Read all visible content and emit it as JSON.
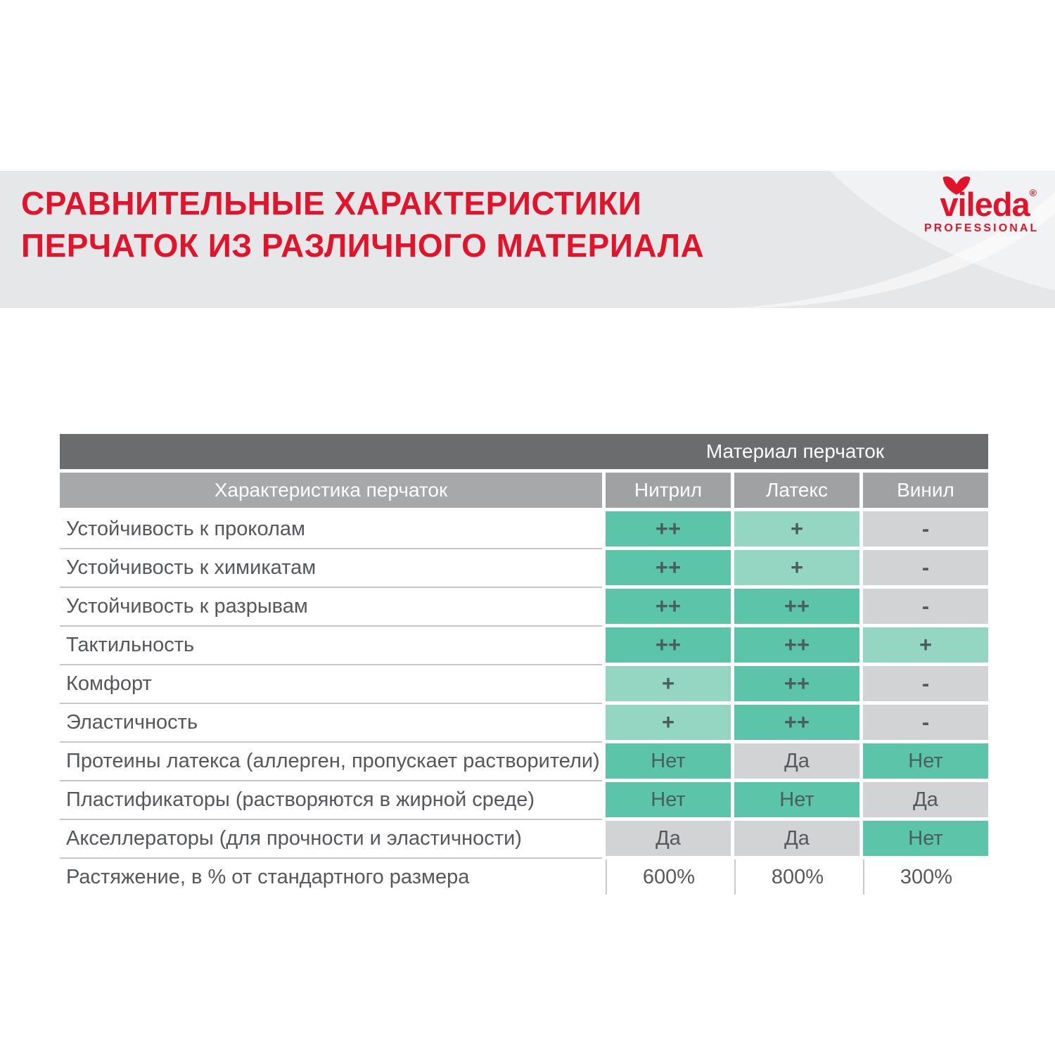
{
  "banner": {
    "title_line1": "СРАВНИТЕЛЬНЫЕ ХАРАКТЕРИСТИКИ",
    "title_line2": "ПЕРЧАТОК ИЗ РАЗЛИЧНОГО МАТЕРИАЛА",
    "title_color": "#e2142b",
    "background": "#e6e7e9"
  },
  "logo": {
    "brand": "vileda",
    "registered": "®",
    "subbrand": "PROFESSIONAL",
    "color": "#e2142b",
    "icon": "vileda-bird-icon"
  },
  "table": {
    "group_header": "Материал перчаток",
    "col_header_label": "Характеристика перчаток",
    "columns": [
      "Нитрил",
      "Латекс",
      "Винил"
    ],
    "colors": {
      "header_dark": "#6a6c6e",
      "header_gray": "#a6a8aa",
      "cell_strong_green": "#5cc4a8",
      "cell_light_green": "#95d6c3",
      "cell_gray": "#d2d3d5"
    },
    "rows": [
      {
        "label": "Устойчивость к проколам",
        "values": [
          {
            "text": "++",
            "style": "strong"
          },
          {
            "text": "+",
            "style": "light"
          },
          {
            "text": "-",
            "style": "gray"
          }
        ]
      },
      {
        "label": "Устойчивость к химикатам",
        "values": [
          {
            "text": "++",
            "style": "strong"
          },
          {
            "text": "+",
            "style": "light"
          },
          {
            "text": "-",
            "style": "gray"
          }
        ]
      },
      {
        "label": "Устойчивость к разрывам",
        "values": [
          {
            "text": "++",
            "style": "strong"
          },
          {
            "text": "++",
            "style": "strong"
          },
          {
            "text": "-",
            "style": "gray"
          }
        ]
      },
      {
        "label": "Тактильность",
        "values": [
          {
            "text": "++",
            "style": "strong"
          },
          {
            "text": "++",
            "style": "strong"
          },
          {
            "text": "+",
            "style": "light"
          }
        ]
      },
      {
        "label": "Комфорт",
        "values": [
          {
            "text": "+",
            "style": "light"
          },
          {
            "text": "++",
            "style": "strong"
          },
          {
            "text": "-",
            "style": "gray"
          }
        ]
      },
      {
        "label": "Эластичность",
        "values": [
          {
            "text": "+",
            "style": "light"
          },
          {
            "text": "++",
            "style": "strong"
          },
          {
            "text": "-",
            "style": "gray"
          }
        ]
      },
      {
        "label": "Протеины латекса (аллерген, пропускает растворители)",
        "values": [
          {
            "text": "Нет",
            "style": "strong"
          },
          {
            "text": "Да",
            "style": "gray"
          },
          {
            "text": "Нет",
            "style": "strong"
          }
        ]
      },
      {
        "label": "Пластификаторы (растворяются в жирной среде)",
        "values": [
          {
            "text": "Нет",
            "style": "strong"
          },
          {
            "text": "Нет",
            "style": "strong"
          },
          {
            "text": "Да",
            "style": "gray"
          }
        ]
      },
      {
        "label": "Акселлераторы (для прочности и эластичности)",
        "values": [
          {
            "text": "Да",
            "style": "gray"
          },
          {
            "text": "Да",
            "style": "gray"
          },
          {
            "text": "Нет",
            "style": "strong"
          }
        ]
      },
      {
        "label": "Растяжение, в % от стандартного размера",
        "values": [
          {
            "text": "600%",
            "style": "plain"
          },
          {
            "text": "800%",
            "style": "plain"
          },
          {
            "text": "300%",
            "style": "plain"
          }
        ]
      }
    ]
  }
}
